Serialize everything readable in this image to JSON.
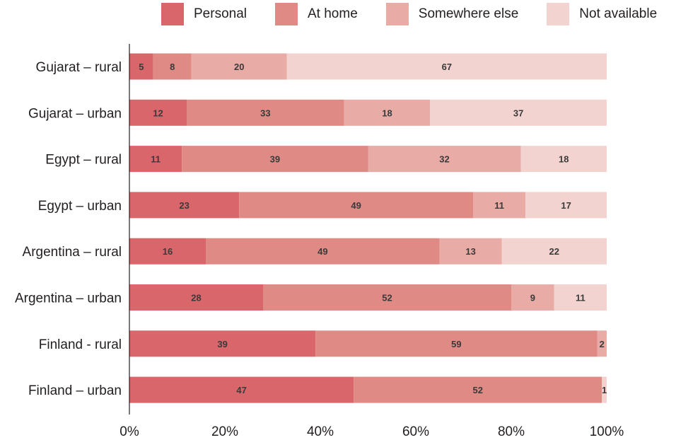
{
  "chart_data": {
    "type": "bar",
    "orientation": "horizontal",
    "stacked": true,
    "title": "",
    "xlabel": "",
    "ylabel": "",
    "xlim": [
      0,
      100
    ],
    "x_ticks": [
      "0%",
      "20%",
      "40%",
      "60%",
      "80%",
      "100%"
    ],
    "grid": false,
    "legend_position": "top",
    "categories": [
      "Gujarat – rural",
      "Gujarat – urban",
      "Egypt – rural",
      "Egypt – urban",
      "Argentina – rural",
      "Argentina – urban",
      "Finland - rural",
      "Finland – urban"
    ],
    "series": [
      {
        "name": "Personal",
        "color": "#d9666a",
        "values": [
          5,
          12,
          11,
          23,
          16,
          28,
          39,
          47
        ]
      },
      {
        "name": "At home",
        "color": "#df8a85",
        "values": [
          8,
          33,
          39,
          49,
          49,
          52,
          59,
          52
        ]
      },
      {
        "name": "Somewhere else",
        "color": "#e8aba6",
        "values": [
          20,
          18,
          32,
          11,
          13,
          9,
          2,
          0
        ]
      },
      {
        "name": "Not available",
        "color": "#f2d3cf",
        "values": [
          67,
          37,
          18,
          17,
          22,
          11,
          0,
          1
        ]
      }
    ]
  }
}
